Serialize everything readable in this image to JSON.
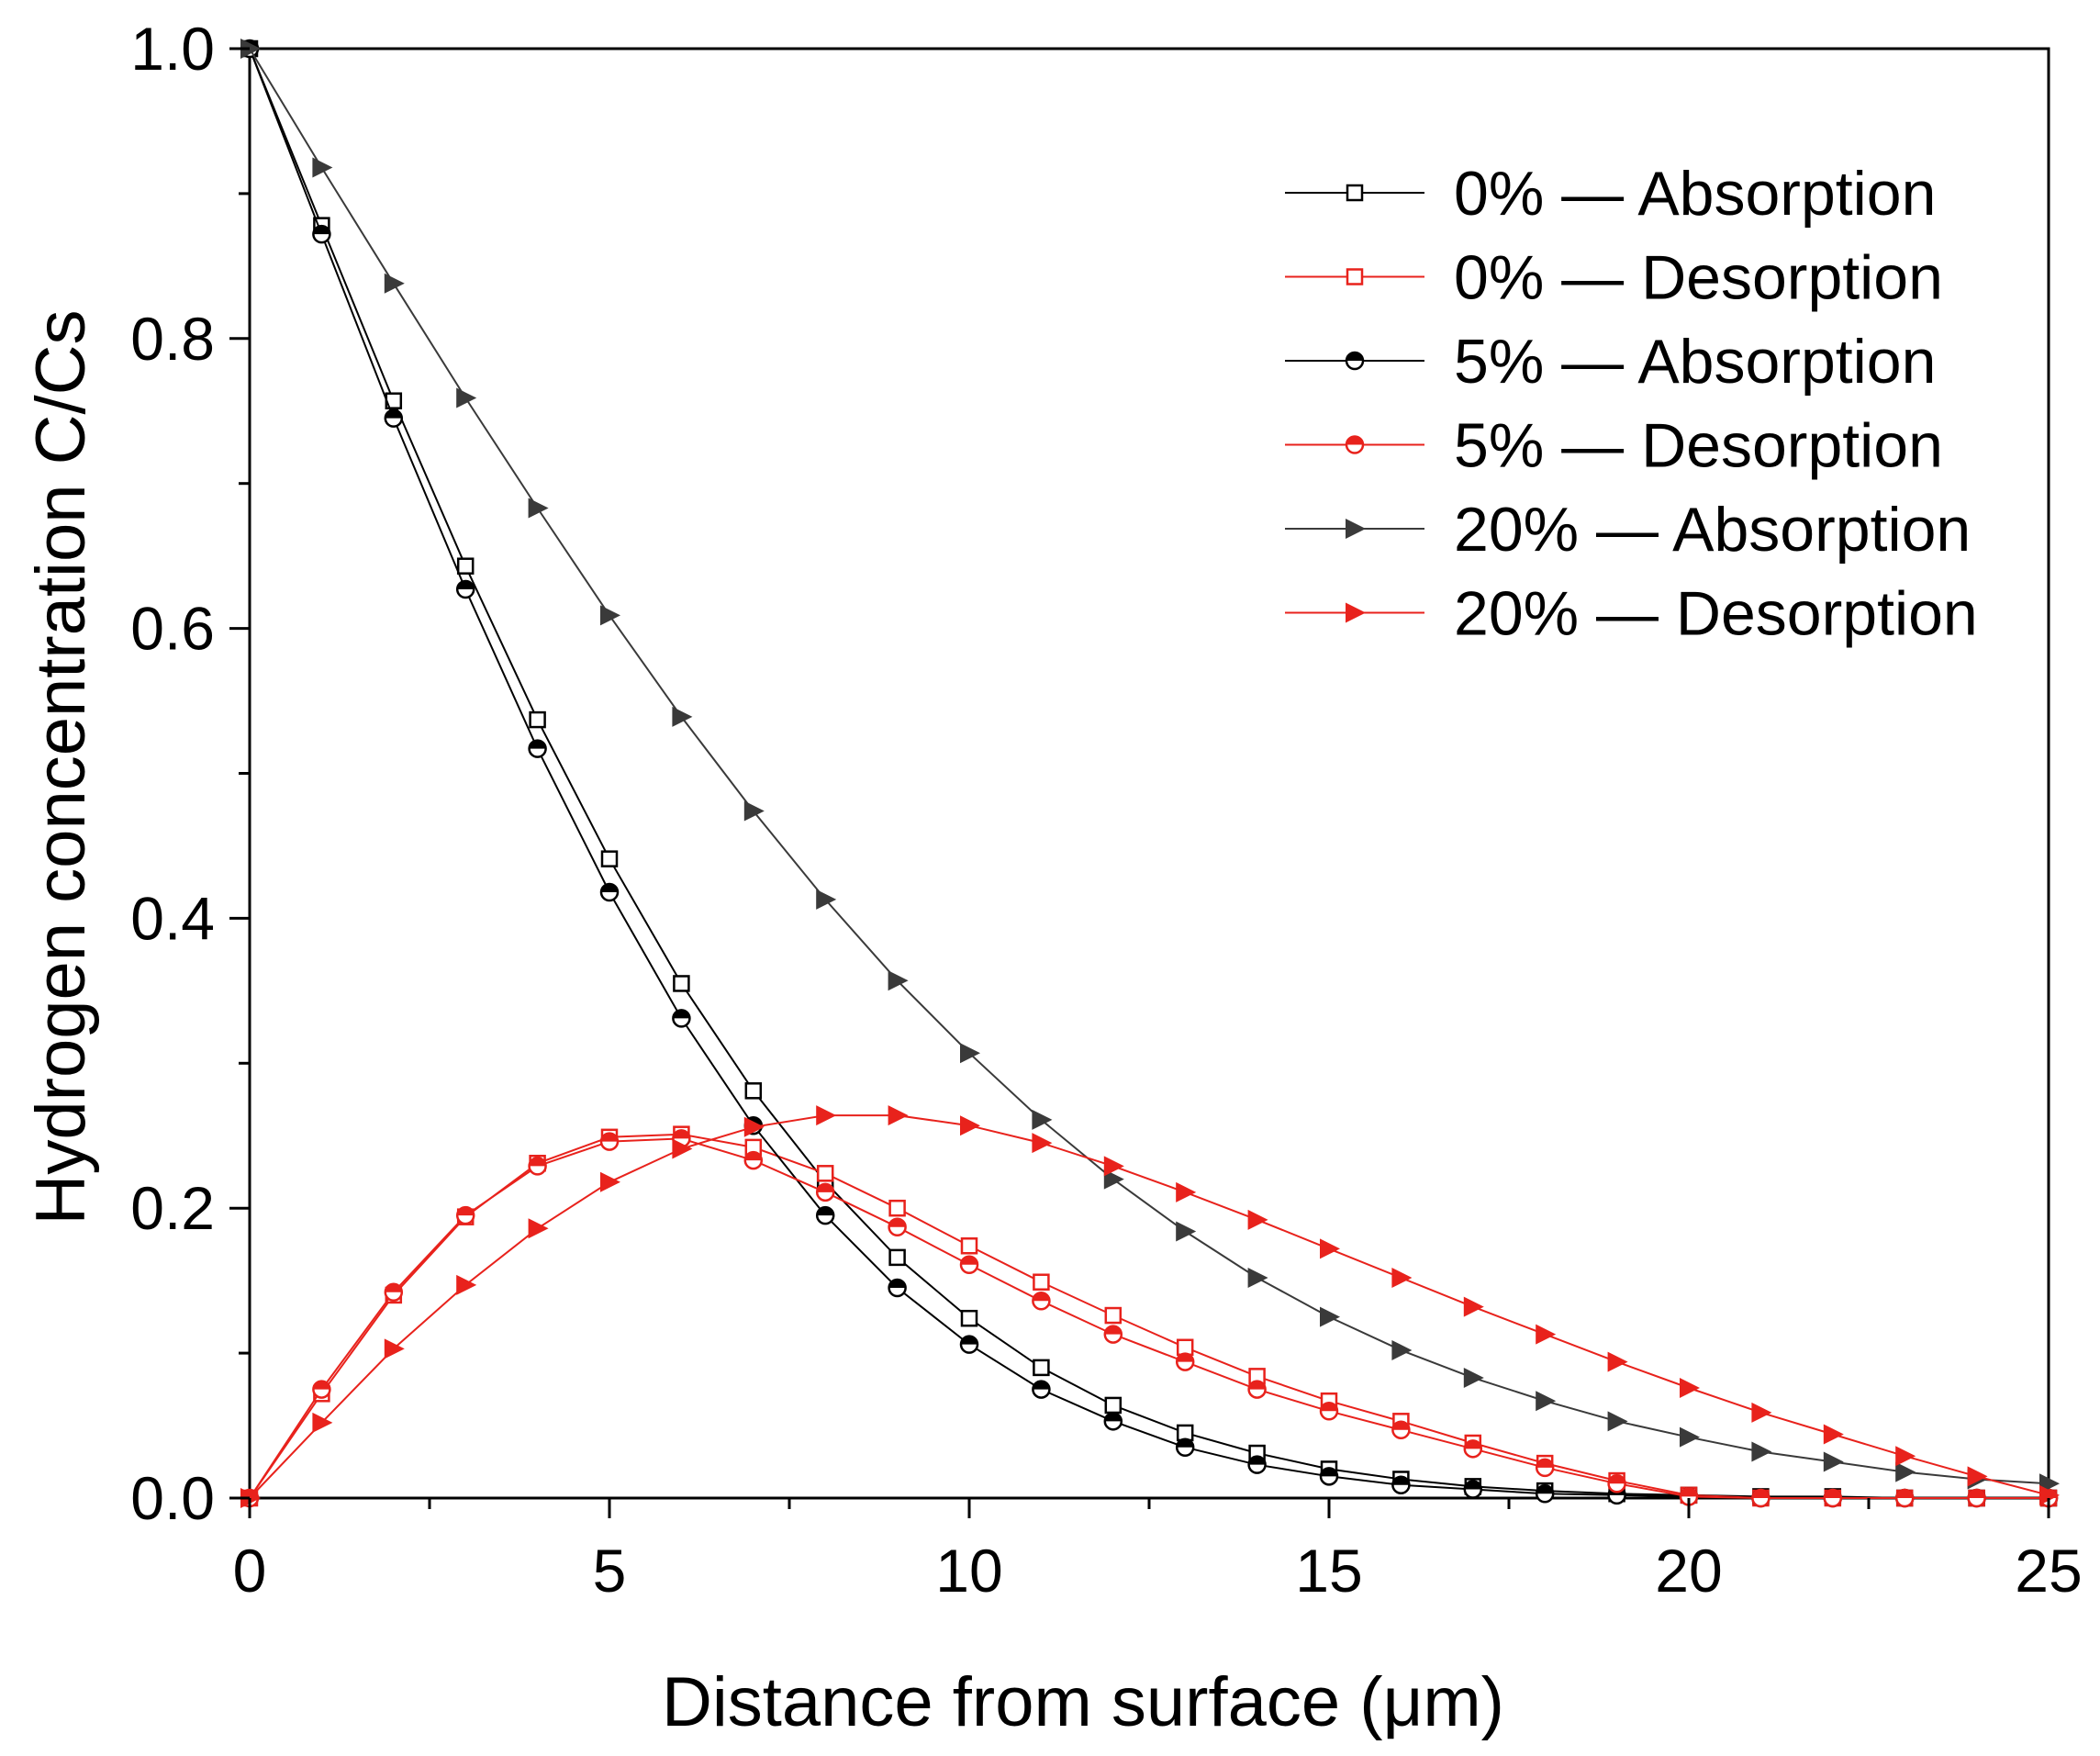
{
  "chart_data": {
    "type": "line",
    "title": "",
    "xlabel": "Distance from surface (μm)",
    "ylabel": "Hydrogen concentration C/Cs",
    "xlim": [
      0,
      25
    ],
    "ylim": [
      0,
      1.0
    ],
    "xticks": [
      0,
      5,
      10,
      15,
      20,
      25
    ],
    "xtick_labels": [
      "0",
      "5",
      "10",
      "15",
      "20",
      "25"
    ],
    "yticks": [
      0.0,
      0.2,
      0.4,
      0.6,
      0.8,
      1.0
    ],
    "ytick_labels": [
      "0.0",
      "0.2",
      "0.4",
      "0.6",
      "0.8",
      "1.0"
    ],
    "grid": false,
    "legend_position": "top-right",
    "x": [
      0,
      1,
      2,
      3,
      4,
      5,
      6,
      7,
      8,
      9,
      10,
      11,
      12,
      13,
      14,
      15,
      16,
      17,
      18,
      19,
      20,
      21,
      22,
      23,
      24,
      25
    ],
    "series": [
      {
        "name": "0% — Absorption",
        "color": "#000000",
        "marker": "square-open",
        "values": [
          1.0,
          0.878,
          0.757,
          0.643,
          0.537,
          0.441,
          0.355,
          0.281,
          0.218,
          0.166,
          0.124,
          0.09,
          0.064,
          0.045,
          0.031,
          0.02,
          0.013,
          0.008,
          0.005,
          0.003,
          0.002,
          0.001,
          0.001,
          0.0,
          0.0,
          0.0
        ]
      },
      {
        "name": "0% — Desorption",
        "color": "#e8221c",
        "marker": "square-open",
        "values": [
          0.0,
          0.072,
          0.14,
          0.194,
          0.231,
          0.249,
          0.251,
          0.242,
          0.224,
          0.2,
          0.174,
          0.149,
          0.126,
          0.104,
          0.084,
          0.067,
          0.053,
          0.038,
          0.024,
          0.012,
          0.002,
          0.0,
          0.0,
          0.0,
          0.0,
          0.0
        ]
      },
      {
        "name": "5% — Absorption",
        "color": "#000000",
        "marker": "circle-half",
        "values": [
          1.0,
          0.872,
          0.745,
          0.627,
          0.517,
          0.418,
          0.331,
          0.257,
          0.195,
          0.145,
          0.106,
          0.075,
          0.053,
          0.035,
          0.023,
          0.015,
          0.009,
          0.006,
          0.003,
          0.002,
          0.001,
          0.0,
          0.0,
          0.0,
          0.0,
          0.0
        ]
      },
      {
        "name": "5% — Desorption",
        "color": "#e8221c",
        "marker": "circle-half",
        "values": [
          0.0,
          0.075,
          0.142,
          0.195,
          0.229,
          0.246,
          0.248,
          0.233,
          0.211,
          0.187,
          0.161,
          0.136,
          0.113,
          0.094,
          0.075,
          0.06,
          0.047,
          0.034,
          0.021,
          0.01,
          0.001,
          0.0,
          0.0,
          0.0,
          0.0,
          0.0
        ]
      },
      {
        "name": "20% — Absorption",
        "color": "#3a3a3a",
        "marker": "triangle-right-filled",
        "values": [
          1.0,
          0.918,
          0.838,
          0.759,
          0.683,
          0.609,
          0.539,
          0.474,
          0.413,
          0.357,
          0.307,
          0.261,
          0.22,
          0.184,
          0.152,
          0.125,
          0.102,
          0.083,
          0.067,
          0.053,
          0.042,
          0.032,
          0.025,
          0.018,
          0.013,
          0.01
        ]
      },
      {
        "name": "20% — Desorption",
        "color": "#e8221c",
        "marker": "triangle-right-filled",
        "values": [
          0.0,
          0.052,
          0.103,
          0.147,
          0.186,
          0.218,
          0.241,
          0.256,
          0.264,
          0.264,
          0.257,
          0.245,
          0.229,
          0.211,
          0.192,
          0.172,
          0.152,
          0.132,
          0.113,
          0.094,
          0.076,
          0.059,
          0.044,
          0.029,
          0.015,
          0.002
        ]
      }
    ]
  }
}
